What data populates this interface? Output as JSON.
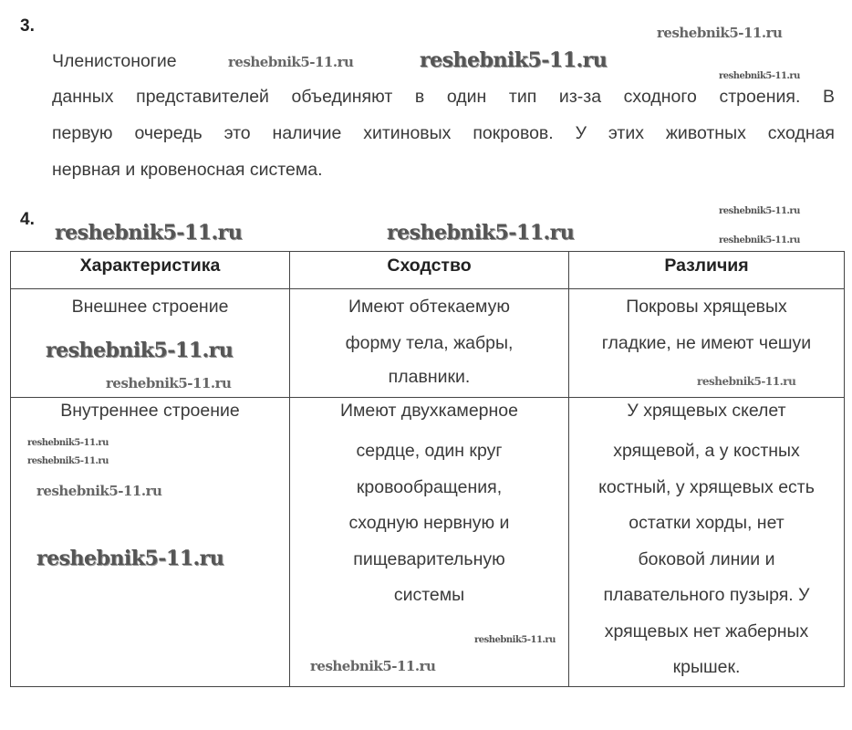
{
  "q3": {
    "number": "3.",
    "title": "Членистоногие",
    "lines": [
      "данных представителей объединяют в один тип из-за сходного строения. В",
      "первую очередь это наличие хитиновых покровов. У этих животных сходная",
      "нервная и кровеносная система."
    ]
  },
  "q4": {
    "number": "4.",
    "table": {
      "headers": [
        "Характеристика",
        "Сходство",
        "Различия"
      ],
      "rows": [
        [
          [
            "Внешнее строение"
          ],
          [
            "Имеют обтекаемую",
            "форму тела, жабры,",
            "плавники."
          ],
          [
            "Покровы хрящевых",
            "гладкие, не имеют чешуи"
          ]
        ],
        [
          [
            "Внутреннее строение"
          ],
          [
            "Имеют двухкамерное",
            "сердце, один круг",
            "кровообращения,",
            "сходную нервную и",
            "пищеварительную",
            "системы"
          ],
          [
            "У хрящевых скелет",
            "хрящевой, а у костных",
            "костный, у хрящевых есть",
            "остатки хорды, нет",
            "боковой линии и",
            "плавательного пузыря. У",
            "хрящевых нет жаберных",
            "крышек."
          ]
        ]
      ]
    }
  },
  "watermark": "reshebnik5-11.ru"
}
